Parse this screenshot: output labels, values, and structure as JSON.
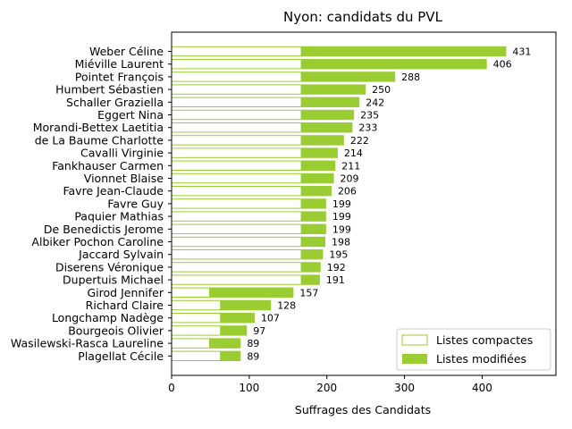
{
  "chart_data": {
    "type": "bar",
    "orientation": "horizontal",
    "stacked": true,
    "title": "Nyon: candidats du PVL",
    "xlabel": "Suffrages des Candidats",
    "ylabel": "",
    "xlim": [
      0,
      495
    ],
    "xticks": [
      0,
      100,
      200,
      300,
      400
    ],
    "categories": [
      "Weber Céline",
      "Miéville Laurent",
      "Pointet François",
      "Humbert Sébastien",
      "Schaller Graziella",
      "Eggert Nina",
      "Morandi-Bettex Laetitia",
      "de La Baume Charlotte",
      "Cavalli Virginie",
      "Fankhauser Carmen",
      "Vionnet Blaise",
      "Favre Jean-Claude",
      "Favre Guy",
      "Paquier Mathias",
      "De Benedictis Jerome",
      "Albiker Pochon Caroline",
      "Jaccard Sylvain",
      "Diserens Véronique",
      "Dupertuis Michael",
      "Girod Jennifer",
      "Richard Claire",
      "Longchamp Nadège",
      "Bourgeois Olivier",
      "Wasilewski-Rasca Laureline",
      "Plagellat Cécile"
    ],
    "totals": [
      431,
      406,
      288,
      250,
      242,
      235,
      233,
      222,
      214,
      211,
      209,
      206,
      199,
      199,
      199,
      198,
      195,
      192,
      191,
      157,
      128,
      107,
      97,
      89,
      89
    ],
    "series": [
      {
        "name": "Listes compactes",
        "color": "#ffffff",
        "edgecolor": "#9acd32",
        "values": [
          167,
          167,
          167,
          167,
          167,
          167,
          167,
          167,
          167,
          167,
          167,
          167,
          167,
          167,
          167,
          167,
          167,
          167,
          167,
          49,
          63,
          63,
          63,
          49,
          63
        ]
      },
      {
        "name": "Listes modifiées",
        "color": "#9acd32",
        "values": [
          264,
          239,
          121,
          83,
          75,
          68,
          66,
          55,
          47,
          44,
          42,
          39,
          32,
          32,
          32,
          31,
          28,
          25,
          24,
          108,
          65,
          44,
          34,
          40,
          26
        ]
      }
    ],
    "legend_position": "lower-right",
    "grid": false
  }
}
